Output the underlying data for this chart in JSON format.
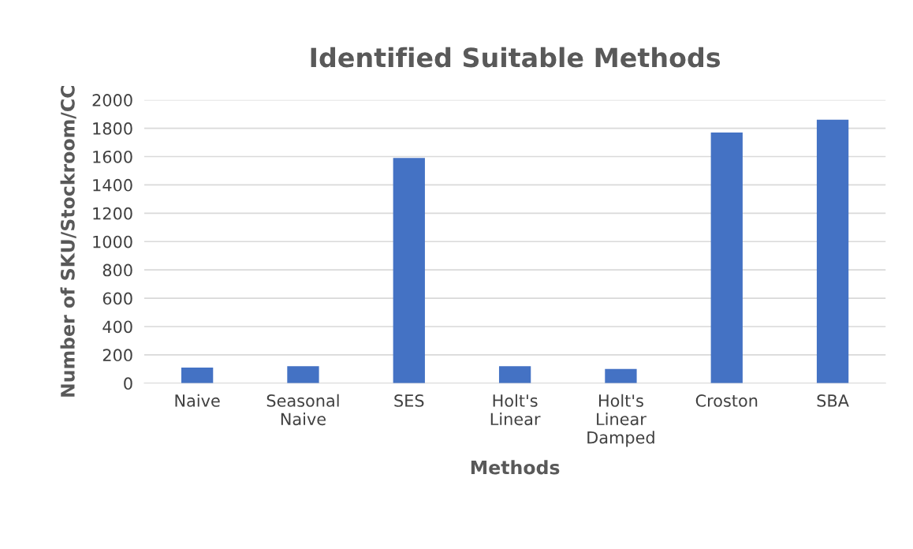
{
  "chart_data": {
    "type": "bar",
    "title": "Identified Suitable Methods",
    "xlabel": "Methods",
    "ylabel": "Number of SKU/Stockroom/CC",
    "categories": [
      "Naive",
      "Seasonal Naive",
      "SES",
      "Holt's Linear",
      "Holt's Linear Damped",
      "Croston",
      "SBA"
    ],
    "values": [
      110,
      120,
      1590,
      120,
      100,
      1770,
      1860
    ],
    "color": "#4472c4",
    "ylim": [
      0,
      2000
    ],
    "yticks": [
      0,
      200,
      400,
      600,
      800,
      1000,
      1200,
      1400,
      1600,
      1800,
      2000
    ],
    "grid": "y",
    "legend": false
  }
}
